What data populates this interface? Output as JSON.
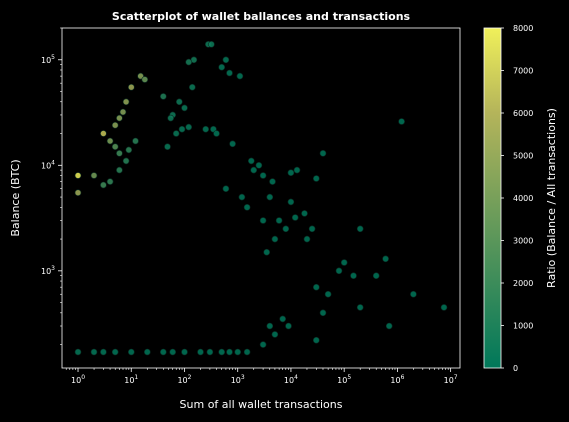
{
  "chart_data": {
    "type": "scatter",
    "title": "Scatterplot of wallet ballances and transactions",
    "xlabel": "Sum of all wallet transactions",
    "ylabel": "Balance (BTC)",
    "x_scale": "log",
    "y_scale": "log",
    "xlim": [
      0.5,
      15000000
    ],
    "ylim": [
      120,
      200000
    ],
    "x_tick_labels": [
      {
        "value": 1,
        "base": "10",
        "exp": "0"
      },
      {
        "value": 10,
        "base": "10",
        "exp": "1"
      },
      {
        "value": 100,
        "base": "10",
        "exp": "2"
      },
      {
        "value": 1000,
        "base": "10",
        "exp": "3"
      },
      {
        "value": 10000,
        "base": "10",
        "exp": "4"
      },
      {
        "value": 100000,
        "base": "10",
        "exp": "5"
      },
      {
        "value": 1000000,
        "base": "10",
        "exp": "6"
      },
      {
        "value": 10000000,
        "base": "10",
        "exp": "7"
      }
    ],
    "y_tick_labels": [
      {
        "value": 1000,
        "base": "10",
        "exp": "3"
      },
      {
        "value": 10000,
        "base": "10",
        "exp": "4"
      },
      {
        "value": 100000,
        "base": "10",
        "exp": "5"
      }
    ],
    "colorbar": {
      "label": "Ratio (Balance / All transactions)",
      "min": 0,
      "max": 8000,
      "ticks": [
        "0",
        "1000",
        "2000",
        "3000",
        "4000",
        "5000",
        "6000",
        "7000",
        "8000"
      ],
      "colormap": [
        "#00785a",
        "#3c8c5a",
        "#78a05a",
        "#b4b45a",
        "#f0f05a"
      ]
    },
    "grid": false,
    "points": [
      [
        1,
        8000
      ],
      [
        1,
        5500
      ],
      [
        3,
        20000
      ],
      [
        5,
        24000
      ],
      [
        6,
        28000
      ],
      [
        7,
        32000
      ],
      [
        8,
        40000
      ],
      [
        15,
        70000
      ],
      [
        18,
        65000
      ],
      [
        10,
        55000
      ],
      [
        4,
        17000
      ],
      [
        5,
        15000
      ],
      [
        6,
        13000
      ],
      [
        2,
        8000
      ],
      [
        3,
        6500
      ],
      [
        4,
        7000
      ],
      [
        6,
        9000
      ],
      [
        8,
        11000
      ],
      [
        9,
        14000
      ],
      [
        12,
        17000
      ],
      [
        280,
        140000
      ],
      [
        320,
        140000
      ],
      [
        150,
        100000
      ],
      [
        120,
        95000
      ],
      [
        140,
        55000
      ],
      [
        600,
        100000
      ],
      [
        700,
        75000
      ],
      [
        500,
        85000
      ],
      [
        1100,
        70000
      ],
      [
        80,
        40000
      ],
      [
        100,
        35000
      ],
      [
        60,
        30000
      ],
      [
        55,
        28000
      ],
      [
        40,
        45000
      ],
      [
        48,
        15000
      ],
      [
        70,
        20000
      ],
      [
        90,
        22000
      ],
      [
        120,
        23000
      ],
      [
        250,
        22000
      ],
      [
        350,
        22000
      ],
      [
        400,
        20000
      ],
      [
        800,
        16000
      ],
      [
        1800,
        11000
      ],
      [
        2000,
        9000
      ],
      [
        3000,
        8000
      ],
      [
        4500,
        7000
      ],
      [
        2500,
        10000
      ],
      [
        1200,
        5000
      ],
      [
        1500,
        4000
      ],
      [
        600,
        6000
      ],
      [
        40000,
        13000
      ],
      [
        13000,
        9000
      ],
      [
        10000,
        8500
      ],
      [
        30000,
        7500
      ],
      [
        1200000,
        26000
      ],
      [
        2000000,
        600
      ],
      [
        7500000,
        450
      ],
      [
        600000,
        1300
      ],
      [
        400000,
        900
      ],
      [
        200000,
        450
      ],
      [
        700000,
        300
      ],
      [
        50000,
        600
      ],
      [
        30000,
        700
      ],
      [
        25000,
        2500
      ],
      [
        20000,
        2000
      ],
      [
        18000,
        3500
      ],
      [
        12000,
        3200
      ],
      [
        10000,
        4500
      ],
      [
        8000,
        2500
      ],
      [
        6000,
        3000
      ],
      [
        5000,
        2000
      ],
      [
        4000,
        5000
      ],
      [
        3500,
        1500
      ],
      [
        3000,
        3000
      ],
      [
        200000,
        2500
      ],
      [
        150000,
        900
      ],
      [
        100000,
        1200
      ],
      [
        80000,
        1000
      ],
      [
        40000,
        400
      ],
      [
        30000,
        220
      ],
      [
        9000,
        300
      ],
      [
        7000,
        350
      ],
      [
        5000,
        250
      ],
      [
        4000,
        300
      ],
      [
        3000,
        200
      ],
      [
        1000,
        170
      ],
      [
        1500,
        170
      ],
      [
        700,
        170
      ],
      [
        500,
        170
      ],
      [
        300,
        170
      ],
      [
        200,
        170
      ],
      [
        100,
        170
      ],
      [
        60,
        170
      ],
      [
        40,
        170
      ],
      [
        20,
        170
      ],
      [
        10,
        170
      ],
      [
        5,
        170
      ],
      [
        3,
        170
      ],
      [
        2,
        170
      ],
      [
        1,
        170
      ]
    ]
  }
}
